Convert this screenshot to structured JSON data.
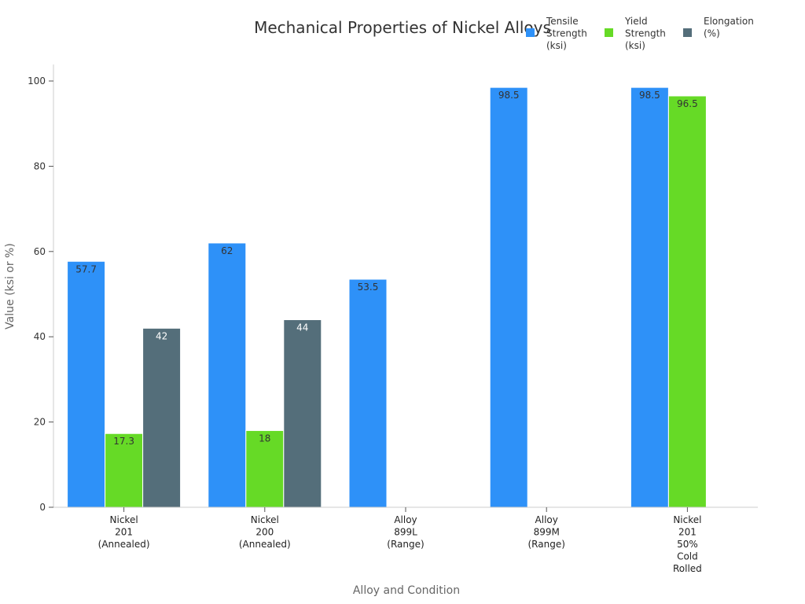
{
  "chart_data": {
    "type": "bar",
    "title": "Mechanical Properties of Nickel Alloys",
    "xlabel": "Alloy and Condition",
    "ylabel": "Value (ksi or %)",
    "ylim": [
      0,
      100
    ],
    "yticks": [
      0,
      20,
      40,
      60,
      80,
      100
    ],
    "categories": [
      [
        "Nickel",
        "201",
        "(Annealed)"
      ],
      [
        "Nickel",
        "200",
        "(Annealed)"
      ],
      [
        "Alloy",
        "899L",
        "(Range)"
      ],
      [
        "Alloy",
        "899M",
        "(Range)"
      ],
      [
        "Nickel",
        "201",
        "50%",
        "Cold",
        "Rolled"
      ]
    ],
    "series": [
      {
        "name": [
          "Tensile",
          "Strength",
          "(ksi)"
        ],
        "color": "#2E91F8",
        "label_color": "#333333",
        "values": [
          57.7,
          62,
          53.5,
          98.5,
          98.5
        ]
      },
      {
        "name": [
          "Yield",
          "Strength",
          "(ksi)"
        ],
        "color": "#66DA26",
        "label_color": "#333333",
        "values": [
          17.3,
          18,
          null,
          null,
          96.5
        ]
      },
      {
        "name": [
          "Elongation",
          "(%)"
        ],
        "color": "#546E7A",
        "label_color": "#ffffff",
        "values": [
          42,
          44,
          null,
          null,
          null
        ]
      }
    ],
    "data_labels": true,
    "grid": false,
    "legend": "top-right"
  }
}
